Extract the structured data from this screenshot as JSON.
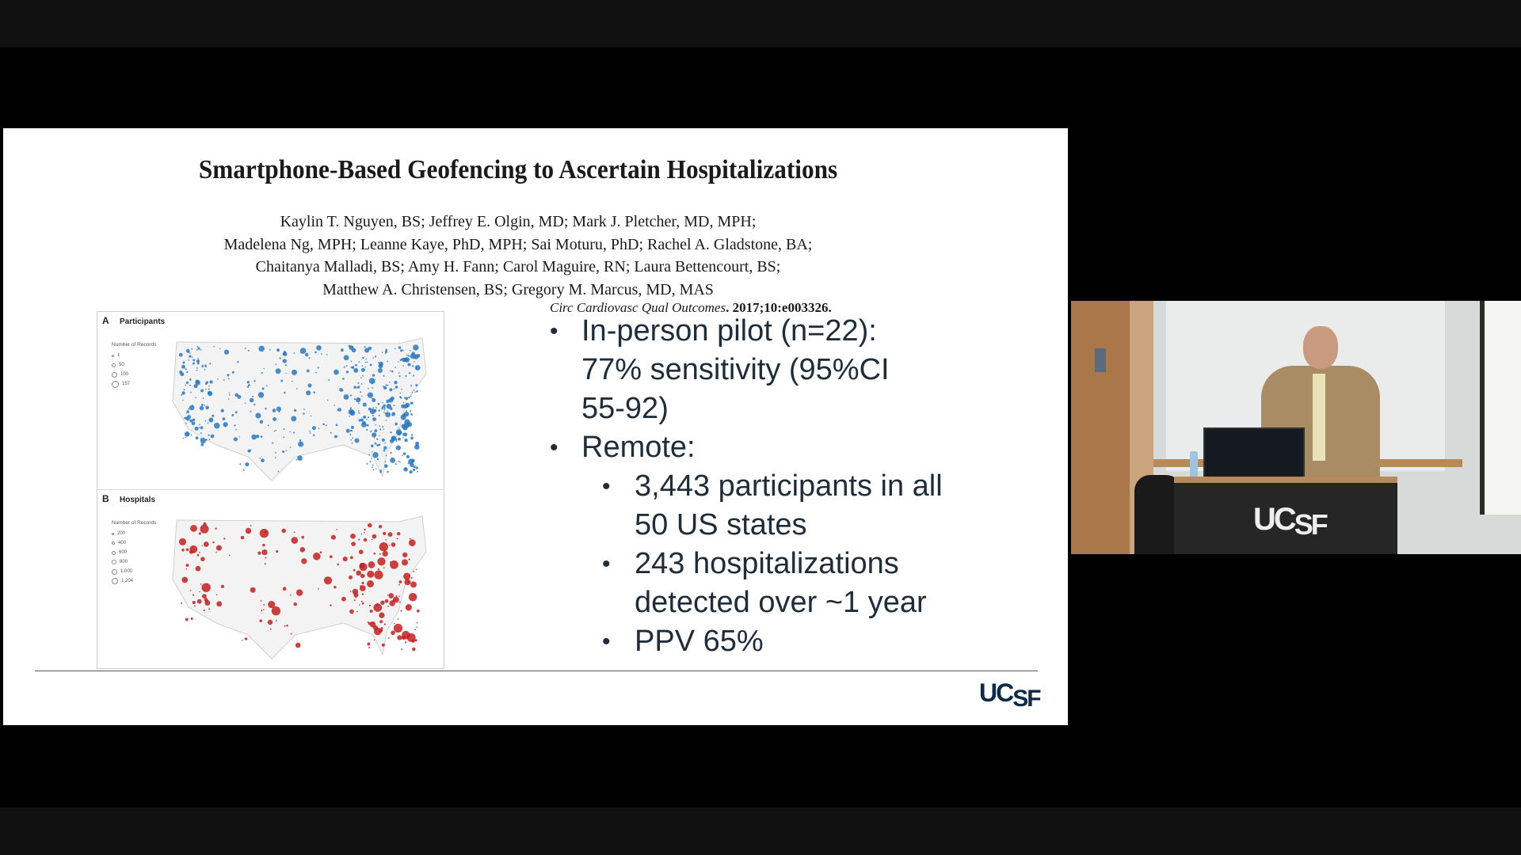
{
  "slide": {
    "title": "Smartphone-Based Geofencing to Ascertain Hospitalizations",
    "authors": [
      "Kaylin T. Nguyen, BS; Jeffrey E. Olgin, MD; Mark J. Pletcher, MD, MPH;",
      "Madelena Ng, MPH; Leanne Kaye, PhD, MPH; Sai Moturu, PhD; Rachel A. Gladstone, BA;",
      "Chaitanya Malladi, BS; Amy H. Fann; Carol Maguire, RN; Laura Bettencourt, BS;",
      "Matthew A. Christensen, BS; Gregory M. Marcus, MD, MAS"
    ],
    "citation_journal": "Circ Cardiovasc Qual Outcomes",
    "citation_rest": ". 2017;10:e003326.",
    "figure": {
      "panel_a": {
        "letter": "A",
        "name": "Participants",
        "legend_title": "Number of Records",
        "legend": [
          "1",
          "50",
          "100",
          "157"
        ],
        "color": "#2a78c0"
      },
      "panel_b": {
        "letter": "B",
        "name": "Hospitals",
        "legend_title": "Number of Records",
        "legend": [
          "200",
          "400",
          "600",
          "800",
          "1,000",
          "1,204"
        ],
        "color": "#c0201e"
      }
    },
    "bullets": [
      {
        "level": 1,
        "text": "In-person pilot (n=22):"
      },
      {
        "level": 1,
        "text": "77% sensitivity (95%CI",
        "continuation": true
      },
      {
        "level": 1,
        "text": "55-92)",
        "continuation": true
      },
      {
        "level": 1,
        "text": "Remote:"
      },
      {
        "level": 2,
        "text": "3,443 participants in all"
      },
      {
        "level": 2,
        "text": "50 US states",
        "continuation": true
      },
      {
        "level": 2,
        "text": "243 hospitalizations"
      },
      {
        "level": 2,
        "text": "detected over ~1 year",
        "continuation": true
      },
      {
        "level": 2,
        "text": "PPV 65%"
      }
    ],
    "bullet_char": "•",
    "logo": {
      "uc": "UC",
      "sf": "SF"
    }
  },
  "video": {
    "podium_logo": {
      "uc": "UC",
      "sf": "SF"
    }
  }
}
